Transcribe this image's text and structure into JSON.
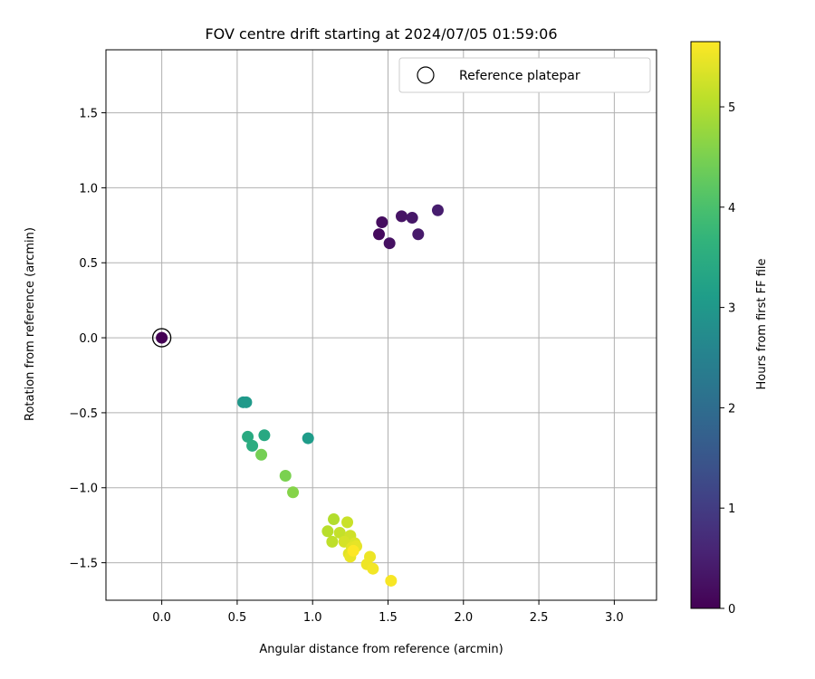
{
  "chart_data": {
    "type": "scatter",
    "title": "FOV centre drift starting at 2024/07/05 01:59:06",
    "xlabel": "Angular distance from reference (arcmin)",
    "ylabel": "Rotation from reference (arcmin)",
    "xlim": [
      -0.37,
      3.28
    ],
    "ylim": [
      -1.75,
      1.92
    ],
    "xticks": [
      0.0,
      0.5,
      1.0,
      1.5,
      2.0,
      2.5,
      3.0
    ],
    "xtick_labels": [
      "0.0",
      "0.5",
      "1.0",
      "1.5",
      "2.0",
      "2.5",
      "3.0"
    ],
    "yticks": [
      -1.5,
      -1.0,
      -0.5,
      0.0,
      0.5,
      1.0,
      1.5
    ],
    "ytick_labels": [
      "−1.5",
      "−1.0",
      "−0.5",
      "0.0",
      "0.5",
      "1.0",
      "1.5"
    ],
    "grid": true,
    "legend": {
      "placement": "top-right",
      "entries": [
        "Reference platepar"
      ]
    },
    "reference_point": {
      "x": 0.0,
      "y": 0.0,
      "marker": "open-circle"
    },
    "colorbar": {
      "label": "Hours from first FF file",
      "colormap": "viridis",
      "range": [
        0,
        5.65
      ],
      "ticks": [
        0,
        1,
        2,
        3,
        4,
        5
      ],
      "tick_labels": [
        "0",
        "1",
        "2",
        "3",
        "4",
        "5"
      ]
    },
    "points": [
      {
        "x": 0.0,
        "y": 0.0,
        "t": 0.0
      },
      {
        "x": 1.44,
        "y": 0.69,
        "t": 0.15
      },
      {
        "x": 1.46,
        "y": 0.77,
        "t": 0.2
      },
      {
        "x": 1.51,
        "y": 0.63,
        "t": 0.25
      },
      {
        "x": 1.59,
        "y": 0.81,
        "t": 0.3
      },
      {
        "x": 1.66,
        "y": 0.8,
        "t": 0.35
      },
      {
        "x": 1.7,
        "y": 0.69,
        "t": 0.4
      },
      {
        "x": 1.83,
        "y": 0.85,
        "t": 0.45
      },
      {
        "x": 0.54,
        "y": -0.43,
        "t": 3.0
      },
      {
        "x": 0.56,
        "y": -0.43,
        "t": 3.05
      },
      {
        "x": 0.97,
        "y": -0.67,
        "t": 3.1
      },
      {
        "x": 0.68,
        "y": -0.65,
        "t": 3.4
      },
      {
        "x": 0.57,
        "y": -0.66,
        "t": 3.45
      },
      {
        "x": 0.6,
        "y": -0.72,
        "t": 3.5
      },
      {
        "x": 0.66,
        "y": -0.78,
        "t": 4.45
      },
      {
        "x": 0.82,
        "y": -0.92,
        "t": 4.5
      },
      {
        "x": 0.87,
        "y": -1.03,
        "t": 4.6
      },
      {
        "x": 1.14,
        "y": -1.21,
        "t": 5.0
      },
      {
        "x": 1.1,
        "y": -1.29,
        "t": 5.05
      },
      {
        "x": 1.13,
        "y": -1.36,
        "t": 5.1
      },
      {
        "x": 1.18,
        "y": -1.3,
        "t": 5.15
      },
      {
        "x": 1.23,
        "y": -1.23,
        "t": 5.2
      },
      {
        "x": 1.25,
        "y": -1.32,
        "t": 5.25
      },
      {
        "x": 1.21,
        "y": -1.36,
        "t": 5.3
      },
      {
        "x": 1.28,
        "y": -1.37,
        "t": 5.35
      },
      {
        "x": 1.24,
        "y": -1.44,
        "t": 5.4
      },
      {
        "x": 1.26,
        "y": -1.4,
        "t": 5.42
      },
      {
        "x": 1.29,
        "y": -1.39,
        "t": 5.45
      },
      {
        "x": 1.25,
        "y": -1.46,
        "t": 5.48
      },
      {
        "x": 1.38,
        "y": -1.46,
        "t": 5.5
      },
      {
        "x": 1.36,
        "y": -1.51,
        "t": 5.52
      },
      {
        "x": 1.4,
        "y": -1.54,
        "t": 5.55
      },
      {
        "x": 1.52,
        "y": -1.62,
        "t": 5.6
      },
      {
        "x": 1.27,
        "y": -1.42,
        "t": 5.65
      }
    ]
  }
}
